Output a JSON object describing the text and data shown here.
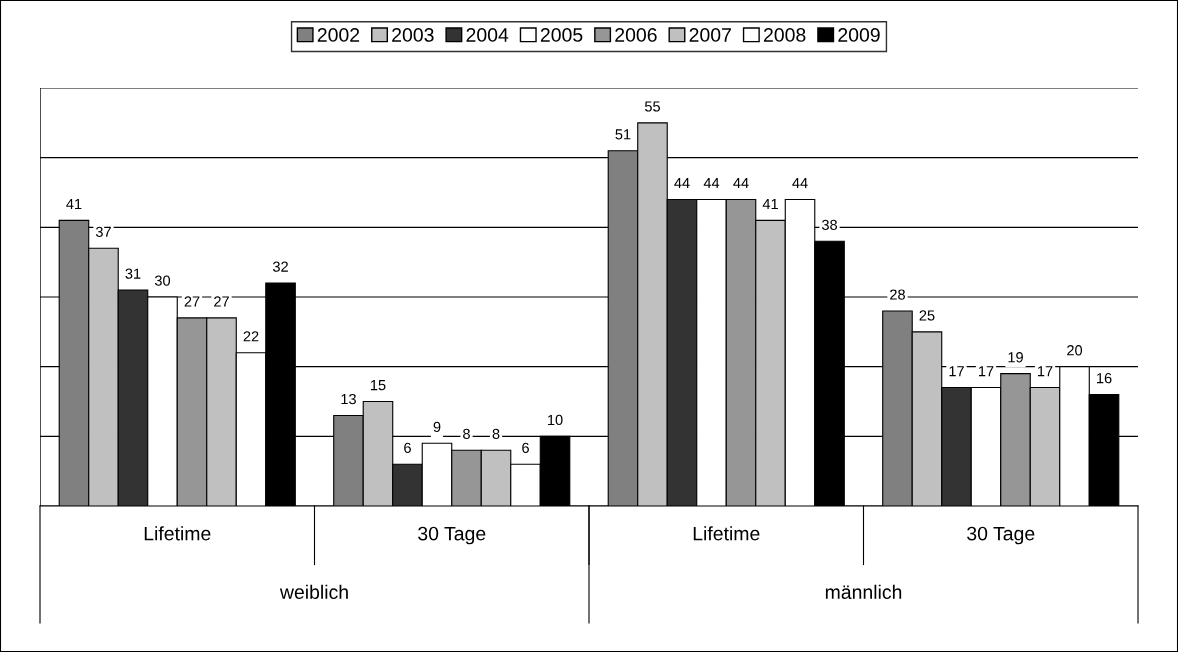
{
  "chart_data": {
    "type": "bar",
    "categories": [
      "Lifetime",
      "30 Tage",
      "Lifetime",
      "30 Tage"
    ],
    "annotations": [
      "weiblich",
      "männlich"
    ],
    "series": [
      {
        "name": "2002",
        "color": "#808080",
        "values": [
          41,
          13,
          51,
          28
        ]
      },
      {
        "name": "2003",
        "color": "#c0c0c0",
        "values": [
          37,
          15,
          55,
          25
        ]
      },
      {
        "name": "2004",
        "color": "#333333",
        "values": [
          31,
          6,
          44,
          17
        ]
      },
      {
        "name": "2005",
        "color": "#ffffff",
        "values": [
          30,
          9,
          44,
          17
        ]
      },
      {
        "name": "2006",
        "color": "#969696",
        "values": [
          27,
          8,
          44,
          19
        ]
      },
      {
        "name": "2007",
        "color": "#c0c0c0",
        "values": [
          27,
          8,
          41,
          17
        ]
      },
      {
        "name": "2008",
        "color": "#ffffff",
        "values": [
          22,
          6,
          44,
          20
        ]
      },
      {
        "name": "2009",
        "color": "#000000",
        "values": [
          32,
          10,
          38,
          16
        ]
      }
    ],
    "ylim": [
      0,
      60
    ],
    "yticks": [
      {
        "value": 0,
        "label": null
      },
      {
        "value": 10,
        "label": null
      },
      {
        "value": 20,
        "label": null
      },
      {
        "value": 30,
        "label": null
      },
      {
        "value": 40,
        "label": null
      },
      {
        "value": 50,
        "label": null
      },
      {
        "value": 60,
        "label": null
      }
    ],
    "grid": "y",
    "legend": "top",
    "tick_labels": "x",
    "data_labels": true
  }
}
